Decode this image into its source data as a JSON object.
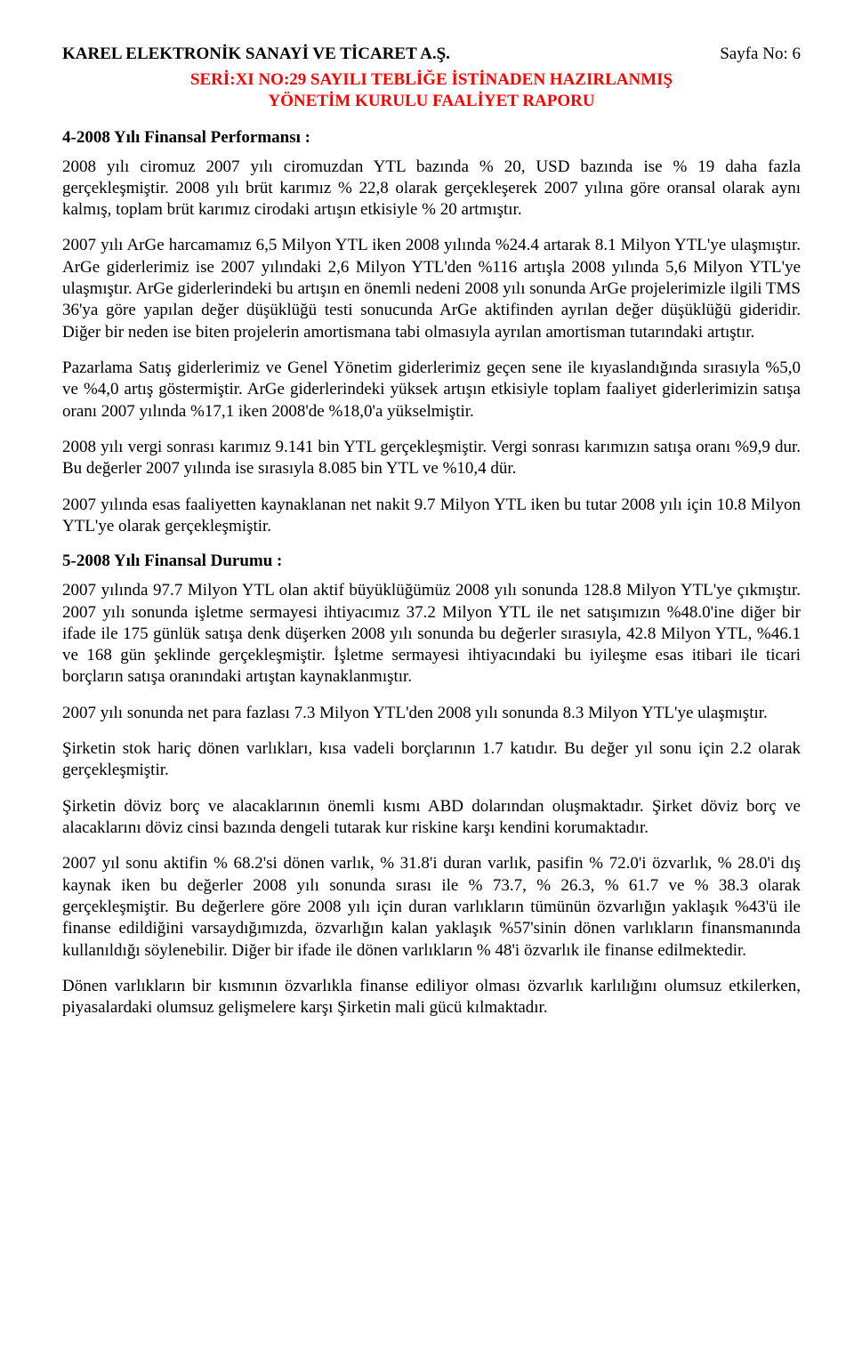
{
  "header": {
    "company": "KAREL ELEKTRONİK SANAYİ VE TİCARET A.Ş.",
    "pageLabel": "Sayfa No: 6",
    "subtitle1": "SERİ:XI NO:29 SAYILI TEBLİĞE İSTİNADEN HAZIRLANMIŞ",
    "subtitle2": "YÖNETİM KURULU FAALİYET RAPORU"
  },
  "section4": {
    "heading": "4-2008 Yılı Finansal Performansı :",
    "p1": "2008 yılı ciromuz 2007 yılı ciromuzdan YTL bazında  % 20, USD bazında ise % 19 daha fazla gerçekleşmiştir. 2008 yılı brüt karımız % 22,8 olarak gerçekleşerek 2007 yılına göre oransal olarak aynı kalmış, toplam brüt karımız cirodaki artışın etkisiyle % 20 artmıştır.",
    "p2": "2007 yılı ArGe harcamamız 6,5 Milyon YTL iken 2008 yılında %24.4 artarak 8.1 Milyon YTL'ye ulaşmıştır. ArGe giderlerimiz ise 2007 yılındaki 2,6 Milyon YTL'den %116 artışla 2008 yılında 5,6 Milyon YTL'ye ulaşmıştır. ArGe giderlerindeki bu artışın en önemli nedeni 2008 yılı sonunda ArGe projelerimizle ilgili TMS 36'ya göre yapılan değer düşüklüğü testi sonucunda ArGe aktifinden ayrılan değer düşüklüğü gideridir. Diğer bir neden ise biten projelerin amortismana tabi olmasıyla ayrılan amortisman tutarındaki artıştır.",
    "p3": "Pazarlama Satış giderlerimiz ve Genel Yönetim giderlerimiz geçen sene ile kıyaslandığında sırasıyla %5,0 ve %4,0 artış göstermiştir. ArGe giderlerindeki yüksek artışın etkisiyle toplam faaliyet giderlerimizin satışa oranı 2007 yılında %17,1 iken 2008'de %18,0'a yükselmiştir.",
    "p4": "2008 yılı vergi sonrası karımız 9.141 bin YTL gerçekleşmiştir. Vergi sonrası karımızın satışa oranı %9,9 dur. Bu değerler 2007 yılında ise sırasıyla 8.085 bin YTL ve  %10,4 dür.",
    "p5": "2007 yılında esas faaliyetten kaynaklanan net nakit 9.7 Milyon YTL iken bu tutar 2008 yılı için  10.8 Milyon YTL'ye olarak gerçekleşmiştir."
  },
  "section5": {
    "heading": "5-2008 Yılı Finansal Durumu :",
    "p1": "2007 yılında 97.7 Milyon YTL olan aktif büyüklüğümüz 2008 yılı sonunda 128.8 Milyon YTL'ye çıkmıştır. 2007 yılı sonunda işletme sermayesi ihtiyacımız 37.2 Milyon YTL ile net satışımızın %48.0'ine diğer bir ifade ile 175 günlük satışa denk düşerken 2008 yılı sonunda bu değerler sırasıyla, 42.8 Milyon YTL, %46.1 ve 168 gün şeklinde gerçekleşmiştir. İşletme sermayesi ihtiyacındaki bu iyileşme esas itibari ile ticari borçların satışa oranındaki artıştan kaynaklanmıştır.",
    "p2": "2007 yılı sonunda net para fazlası 7.3 Milyon YTL'den 2008 yılı sonunda 8.3 Milyon YTL'ye ulaşmıştır.",
    "p3": "Şirketin stok hariç dönen varlıkları, kısa vadeli borçlarının 1.7 katıdır. Bu değer yıl sonu için 2.2 olarak gerçekleşmiştir.",
    "p4": "Şirketin döviz borç ve alacaklarının önemli kısmı ABD dolarından oluşmaktadır. Şirket döviz borç ve alacaklarını döviz cinsi bazında dengeli tutarak kur riskine karşı kendini korumaktadır.",
    "p5": "2007 yıl sonu aktifin % 68.2'si dönen varlık, % 31.8'i duran varlık,  pasifin % 72.0'i özvarlık, % 28.0'i dış kaynak iken bu değerler 2008 yılı sonunda sırası ile % 73.7, % 26.3, % 61.7 ve % 38.3 olarak gerçekleşmiştir. Bu değerlere göre 2008 yılı için duran varlıkların tümünün özvarlığın yaklaşık %43'ü ile finanse edildiğini varsaydığımızda,  özvarlığın kalan yaklaşık %57'sinin dönen varlıkların finansmanında kullanıldığı söylenebilir. Diğer bir ifade ile dönen varlıkların % 48'i özvarlık ile finanse edilmektedir.",
    "p6": "Dönen varlıkların bir kısmının özvarlıkla finanse ediliyor olması özvarlık karlılığını olumsuz etkilerken, piyasalardaki olumsuz gelişmelere karşı Şirketin mali gücü kılmaktadır."
  },
  "colors": {
    "companyTitle": "#000000",
    "subtitle": "#ff0000",
    "bodyText": "#000000",
    "background": "#ffffff"
  },
  "typography": {
    "fontFamily": "Times New Roman",
    "bodyFontSizePx": 19,
    "lineHeight": 1.28,
    "headingWeight": "bold"
  },
  "layout": {
    "pageWidthPx": 960,
    "pageHeightPx": 1521,
    "textAlign": "justify"
  }
}
